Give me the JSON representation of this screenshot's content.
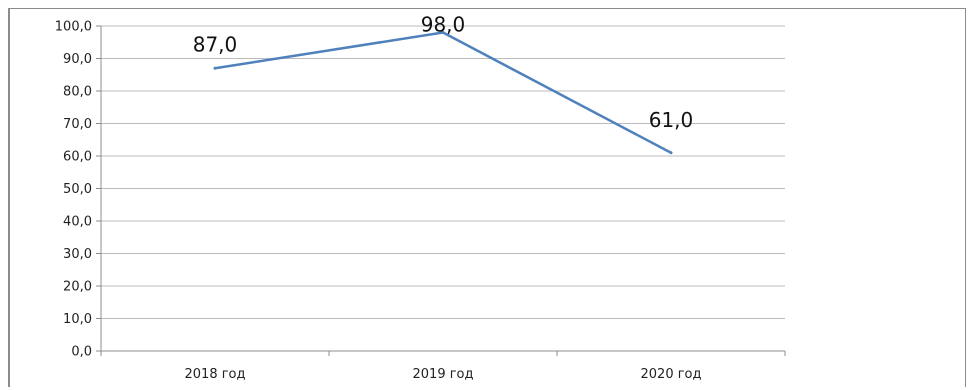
{
  "chart_data": {
    "type": "line",
    "categories": [
      "2018 год",
      "2019 год",
      "2020 год"
    ],
    "series": [
      {
        "values": [
          87.0,
          98.0,
          61.0
        ],
        "color": "#4f81bd"
      }
    ],
    "data_labels": [
      "87,0",
      "98,0",
      "61,0"
    ],
    "y_ticks": [
      "0,0",
      "10,0",
      "20,0",
      "30,0",
      "40,0",
      "50,0",
      "60,0",
      "70,0",
      "80,0",
      "90,0",
      "100,0"
    ],
    "ylim": [
      0,
      100
    ],
    "grid": true,
    "legend": "none",
    "title": "",
    "xlabel": "",
    "ylabel": ""
  }
}
